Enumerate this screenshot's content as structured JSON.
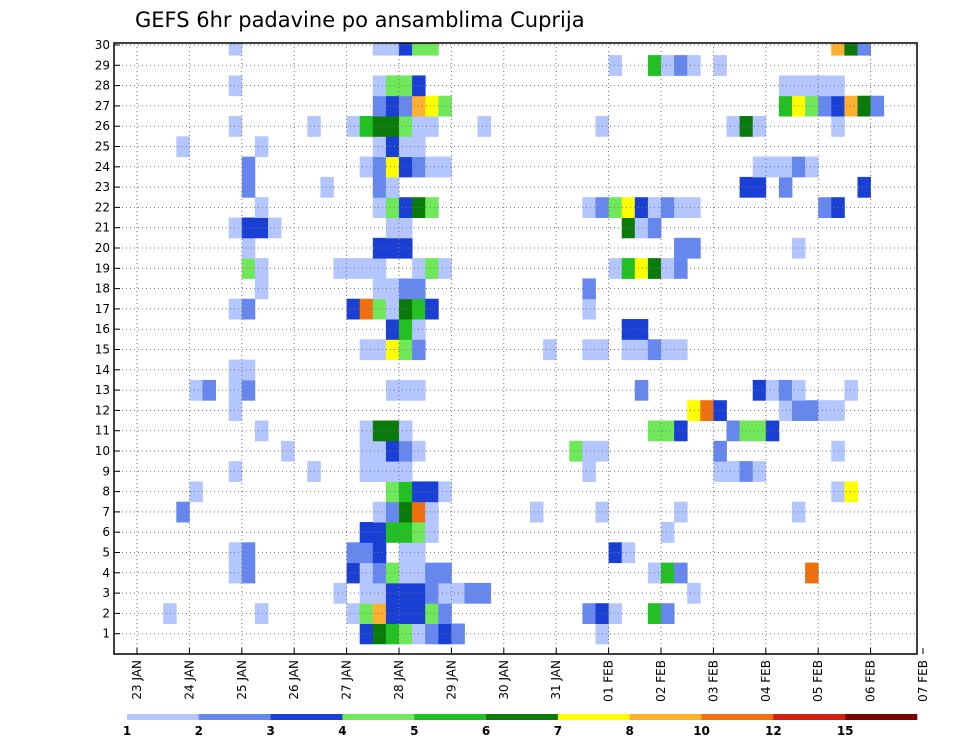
{
  "chart_data": {
    "type": "heatmap",
    "title": "GEFS 6hr padavine po ansamblima Cuprija",
    "x_tick_labels": [
      "23 JAN",
      "24 JAN",
      "25 JAN",
      "26 JAN",
      "27 JAN",
      "28 JAN",
      "29 JAN",
      "30 JAN",
      "31 JAN",
      "01 FEB",
      "02 FEB",
      "03 FEB",
      "04 FEB",
      "05 FEB",
      "06 FEB",
      "07 FEB"
    ],
    "y_tick_labels": [
      "1",
      "2",
      "3",
      "4",
      "5",
      "6",
      "7",
      "8",
      "9",
      "10",
      "11",
      "12",
      "13",
      "14",
      "15",
      "16",
      "17",
      "18",
      "19",
      "20",
      "21",
      "22",
      "23",
      "24",
      "25",
      "26",
      "27",
      "28",
      "29",
      "30"
    ],
    "steps_per_day": 4,
    "x_start_day_offset": 0.5,
    "grid": true,
    "colorbar": {
      "levels": [
        1,
        2,
        3,
        4,
        5,
        6,
        7,
        8,
        10,
        12,
        15,
        20
      ],
      "colors": [
        "#b3c6ff",
        "#6688ee",
        "#1a3fd4",
        "#6fe85a",
        "#22c022",
        "#0a7a0a",
        "#ffff00",
        "#ffb030",
        "#f07010",
        "#d02010",
        "#7a0000"
      ]
    },
    "cells": [
      [
        1,
        15,
        3
      ],
      [
        1,
        16,
        6
      ],
      [
        1,
        17,
        5
      ],
      [
        1,
        18,
        4
      ],
      [
        1,
        19,
        1
      ],
      [
        1,
        20,
        2
      ],
      [
        1,
        21,
        3
      ],
      [
        1,
        22,
        2
      ],
      [
        1,
        33,
        1
      ],
      [
        2,
        0,
        1
      ],
      [
        2,
        7,
        1
      ],
      [
        2,
        14,
        1
      ],
      [
        2,
        15,
        4
      ],
      [
        2,
        16,
        8
      ],
      [
        2,
        17,
        3
      ],
      [
        2,
        18,
        3
      ],
      [
        2,
        19,
        3
      ],
      [
        2,
        20,
        4
      ],
      [
        2,
        21,
        2
      ],
      [
        2,
        32,
        2
      ],
      [
        2,
        33,
        3
      ],
      [
        2,
        34,
        1
      ],
      [
        2,
        37,
        5
      ],
      [
        2,
        38,
        2
      ],
      [
        3,
        13,
        1
      ],
      [
        3,
        15,
        1
      ],
      [
        3,
        16,
        1
      ],
      [
        3,
        17,
        3
      ],
      [
        3,
        18,
        3
      ],
      [
        3,
        19,
        3
      ],
      [
        3,
        20,
        2
      ],
      [
        3,
        21,
        1
      ],
      [
        3,
        22,
        1
      ],
      [
        3,
        23,
        2
      ],
      [
        3,
        24,
        2
      ],
      [
        3,
        40,
        1
      ],
      [
        4,
        5,
        1
      ],
      [
        4,
        6,
        2
      ],
      [
        4,
        14,
        3
      ],
      [
        4,
        15,
        1
      ],
      [
        4,
        16,
        2
      ],
      [
        4,
        17,
        4
      ],
      [
        4,
        18,
        1
      ],
      [
        4,
        19,
        1
      ],
      [
        4,
        20,
        2
      ],
      [
        4,
        21,
        2
      ],
      [
        4,
        37,
        1
      ],
      [
        4,
        38,
        5
      ],
      [
        4,
        39,
        2
      ],
      [
        4,
        49,
        9
      ],
      [
        5,
        5,
        1
      ],
      [
        5,
        6,
        2
      ],
      [
        5,
        14,
        2
      ],
      [
        5,
        15,
        2
      ],
      [
        5,
        16,
        3
      ],
      [
        5,
        18,
        1
      ],
      [
        5,
        19,
        1
      ],
      [
        5,
        34,
        3
      ],
      [
        5,
        35,
        1
      ],
      [
        6,
        15,
        3
      ],
      [
        6,
        16,
        3
      ],
      [
        6,
        17,
        5
      ],
      [
        6,
        18,
        5
      ],
      [
        6,
        19,
        4
      ],
      [
        6,
        20,
        1
      ],
      [
        6,
        38,
        1
      ],
      [
        7,
        1,
        2
      ],
      [
        7,
        16,
        1
      ],
      [
        7,
        17,
        2
      ],
      [
        7,
        18,
        6
      ],
      [
        7,
        19,
        9
      ],
      [
        7,
        20,
        1
      ],
      [
        7,
        28,
        1
      ],
      [
        7,
        33,
        1
      ],
      [
        7,
        39,
        1
      ],
      [
        7,
        48,
        1
      ],
      [
        8,
        2,
        1
      ],
      [
        8,
        17,
        4
      ],
      [
        8,
        18,
        5
      ],
      [
        8,
        19,
        3
      ],
      [
        8,
        20,
        3
      ],
      [
        8,
        21,
        1
      ],
      [
        8,
        51,
        1
      ],
      [
        8,
        52,
        7
      ],
      [
        9,
        5,
        1
      ],
      [
        9,
        11,
        1
      ],
      [
        9,
        15,
        1
      ],
      [
        9,
        16,
        1
      ],
      [
        9,
        17,
        1
      ],
      [
        9,
        18,
        1
      ],
      [
        9,
        32,
        1
      ],
      [
        9,
        42,
        1
      ],
      [
        9,
        43,
        1
      ],
      [
        9,
        44,
        2
      ],
      [
        9,
        45,
        1
      ],
      [
        10,
        9,
        1
      ],
      [
        10,
        15,
        1
      ],
      [
        10,
        16,
        1
      ],
      [
        10,
        17,
        3
      ],
      [
        10,
        18,
        2
      ],
      [
        10,
        19,
        1
      ],
      [
        10,
        31,
        4
      ],
      [
        10,
        32,
        1
      ],
      [
        10,
        33,
        1
      ],
      [
        10,
        42,
        2
      ],
      [
        10,
        51,
        1
      ],
      [
        11,
        7,
        1
      ],
      [
        11,
        15,
        1
      ],
      [
        11,
        16,
        6
      ],
      [
        11,
        17,
        6
      ],
      [
        11,
        18,
        1
      ],
      [
        11,
        37,
        4
      ],
      [
        11,
        38,
        4
      ],
      [
        11,
        39,
        3
      ],
      [
        11,
        43,
        2
      ],
      [
        11,
        44,
        4
      ],
      [
        11,
        45,
        4
      ],
      [
        11,
        46,
        3
      ],
      [
        12,
        5,
        1
      ],
      [
        12,
        40,
        7
      ],
      [
        12,
        41,
        9
      ],
      [
        12,
        42,
        3
      ],
      [
        12,
        47,
        1
      ],
      [
        12,
        48,
        2
      ],
      [
        12,
        49,
        2
      ],
      [
        12,
        50,
        1
      ],
      [
        12,
        51,
        1
      ],
      [
        13,
        2,
        1
      ],
      [
        13,
        3,
        2
      ],
      [
        13,
        5,
        1
      ],
      [
        13,
        6,
        2
      ],
      [
        13,
        17,
        1
      ],
      [
        13,
        18,
        1
      ],
      [
        13,
        19,
        1
      ],
      [
        13,
        36,
        2
      ],
      [
        13,
        45,
        3
      ],
      [
        13,
        46,
        1
      ],
      [
        13,
        47,
        2
      ],
      [
        13,
        48,
        1
      ],
      [
        13,
        52,
        1
      ],
      [
        14,
        5,
        1
      ],
      [
        14,
        6,
        1
      ],
      [
        15,
        15,
        1
      ],
      [
        15,
        16,
        1
      ],
      [
        15,
        17,
        7
      ],
      [
        15,
        18,
        4
      ],
      [
        15,
        19,
        2
      ],
      [
        15,
        29,
        1
      ],
      [
        15,
        32,
        1
      ],
      [
        15,
        33,
        1
      ],
      [
        15,
        35,
        1
      ],
      [
        15,
        36,
        1
      ],
      [
        15,
        37,
        2
      ],
      [
        15,
        38,
        1
      ],
      [
        15,
        39,
        1
      ],
      [
        16,
        17,
        3
      ],
      [
        16,
        18,
        5
      ],
      [
        16,
        19,
        1
      ],
      [
        16,
        35,
        3
      ],
      [
        16,
        36,
        3
      ],
      [
        17,
        5,
        1
      ],
      [
        17,
        6,
        2
      ],
      [
        17,
        14,
        3
      ],
      [
        17,
        15,
        9
      ],
      [
        17,
        16,
        4
      ],
      [
        17,
        17,
        1
      ],
      [
        17,
        18,
        6
      ],
      [
        17,
        19,
        5
      ],
      [
        17,
        20,
        3
      ],
      [
        17,
        32,
        1
      ],
      [
        18,
        7,
        1
      ],
      [
        18,
        16,
        1
      ],
      [
        18,
        17,
        1
      ],
      [
        18,
        18,
        2
      ],
      [
        18,
        19,
        2
      ],
      [
        18,
        32,
        2
      ],
      [
        19,
        6,
        4
      ],
      [
        19,
        7,
        1
      ],
      [
        19,
        13,
        1
      ],
      [
        19,
        14,
        1
      ],
      [
        19,
        15,
        1
      ],
      [
        19,
        16,
        1
      ],
      [
        19,
        19,
        1
      ],
      [
        19,
        20,
        4
      ],
      [
        19,
        21,
        1
      ],
      [
        19,
        34,
        1
      ],
      [
        19,
        35,
        5
      ],
      [
        19,
        36,
        7
      ],
      [
        19,
        37,
        6
      ],
      [
        19,
        38,
        1
      ],
      [
        19,
        39,
        2
      ],
      [
        20,
        6,
        1
      ],
      [
        20,
        16,
        3
      ],
      [
        20,
        17,
        3
      ],
      [
        20,
        18,
        3
      ],
      [
        20,
        39,
        2
      ],
      [
        20,
        40,
        2
      ],
      [
        20,
        48,
        1
      ],
      [
        21,
        5,
        1
      ],
      [
        21,
        6,
        3
      ],
      [
        21,
        7,
        3
      ],
      [
        21,
        8,
        1
      ],
      [
        21,
        17,
        1
      ],
      [
        21,
        18,
        1
      ],
      [
        21,
        35,
        6
      ],
      [
        21,
        36,
        1
      ],
      [
        21,
        37,
        2
      ],
      [
        22,
        7,
        1
      ],
      [
        22,
        16,
        1
      ],
      [
        22,
        17,
        4
      ],
      [
        22,
        18,
        3
      ],
      [
        22,
        19,
        6
      ],
      [
        22,
        20,
        4
      ],
      [
        22,
        32,
        1
      ],
      [
        22,
        33,
        2
      ],
      [
        22,
        34,
        4
      ],
      [
        22,
        35,
        7
      ],
      [
        22,
        36,
        3
      ],
      [
        22,
        37,
        1
      ],
      [
        22,
        38,
        2
      ],
      [
        22,
        39,
        1
      ],
      [
        22,
        40,
        1
      ],
      [
        22,
        50,
        2
      ],
      [
        22,
        51,
        3
      ],
      [
        23,
        6,
        2
      ],
      [
        23,
        12,
        1
      ],
      [
        23,
        16,
        2
      ],
      [
        23,
        17,
        1
      ],
      [
        23,
        44,
        3
      ],
      [
        23,
        45,
        3
      ],
      [
        23,
        47,
        2
      ],
      [
        23,
        53,
        3
      ],
      [
        24,
        6,
        2
      ],
      [
        24,
        15,
        1
      ],
      [
        24,
        16,
        2
      ],
      [
        24,
        17,
        7
      ],
      [
        24,
        18,
        3
      ],
      [
        24,
        19,
        2
      ],
      [
        24,
        20,
        1
      ],
      [
        24,
        21,
        1
      ],
      [
        24,
        45,
        1
      ],
      [
        24,
        46,
        1
      ],
      [
        24,
        47,
        1
      ],
      [
        24,
        48,
        2
      ],
      [
        24,
        49,
        1
      ],
      [
        25,
        1,
        1
      ],
      [
        25,
        7,
        1
      ],
      [
        25,
        16,
        1
      ],
      [
        25,
        17,
        3
      ],
      [
        25,
        18,
        1
      ],
      [
        25,
        19,
        1
      ],
      [
        26,
        5,
        1
      ],
      [
        26,
        11,
        1
      ],
      [
        26,
        14,
        1
      ],
      [
        26,
        15,
        5
      ],
      [
        26,
        16,
        6
      ],
      [
        26,
        17,
        6
      ],
      [
        26,
        18,
        4
      ],
      [
        26,
        19,
        1
      ],
      [
        26,
        20,
        1
      ],
      [
        26,
        24,
        1
      ],
      [
        26,
        33,
        1
      ],
      [
        26,
        43,
        1
      ],
      [
        26,
        44,
        6
      ],
      [
        26,
        45,
        1
      ],
      [
        26,
        51,
        1
      ],
      [
        27,
        16,
        2
      ],
      [
        27,
        17,
        3
      ],
      [
        27,
        18,
        2
      ],
      [
        27,
        19,
        8
      ],
      [
        27,
        20,
        7
      ],
      [
        27,
        21,
        4
      ],
      [
        27,
        47,
        5
      ],
      [
        27,
        48,
        7
      ],
      [
        27,
        49,
        4
      ],
      [
        27,
        50,
        2
      ],
      [
        27,
        51,
        3
      ],
      [
        27,
        52,
        8
      ],
      [
        27,
        53,
        6
      ],
      [
        27,
        54,
        2
      ],
      [
        28,
        5,
        1
      ],
      [
        28,
        16,
        1
      ],
      [
        28,
        17,
        4
      ],
      [
        28,
        18,
        4
      ],
      [
        28,
        19,
        3
      ],
      [
        28,
        47,
        1
      ],
      [
        28,
        48,
        1
      ],
      [
        28,
        49,
        1
      ],
      [
        28,
        50,
        1
      ],
      [
        28,
        51,
        1
      ],
      [
        29,
        34,
        1
      ],
      [
        29,
        37,
        5
      ],
      [
        29,
        38,
        1
      ],
      [
        29,
        39,
        2
      ],
      [
        29,
        40,
        1
      ],
      [
        29,
        42,
        1
      ],
      [
        30,
        5,
        1
      ],
      [
        30,
        16,
        1
      ],
      [
        30,
        17,
        1
      ],
      [
        30,
        18,
        3
      ],
      [
        30,
        19,
        4
      ],
      [
        30,
        20,
        4
      ],
      [
        30,
        51,
        8
      ],
      [
        30,
        52,
        6
      ],
      [
        30,
        53,
        2
      ]
    ]
  }
}
